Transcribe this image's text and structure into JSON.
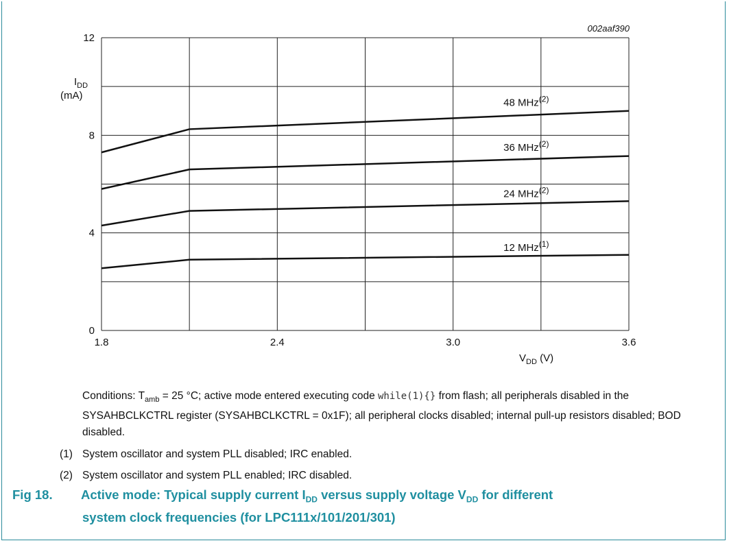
{
  "chart_data": {
    "type": "line",
    "reference_id": "002aaf390",
    "ylabel_main": "I",
    "ylabel_sub": "DD",
    "ylabel_unit": "(mA)",
    "xlabel_main": "V",
    "xlabel_sub": "DD",
    "xlabel_unit": " (V)",
    "xlim": [
      1.8,
      3.6
    ],
    "ylim": [
      0,
      12
    ],
    "x_ticks": [
      1.8,
      2.4,
      3.0,
      3.6
    ],
    "x_tick_labels": [
      "1.8",
      "2.4",
      "3.0",
      "3.6"
    ],
    "x_grid": [
      1.8,
      2.1,
      2.4,
      2.7,
      3.0,
      3.3,
      3.6
    ],
    "y_ticks": [
      0,
      4,
      8,
      12
    ],
    "y_tick_labels": [
      "0",
      "4",
      "8",
      "12"
    ],
    "y_grid": [
      0,
      2,
      4,
      6,
      8,
      10,
      12
    ],
    "grid": true,
    "x": [
      1.8,
      2.1,
      3.6
    ],
    "series": [
      {
        "name": "48 MHz",
        "note": "(2)",
        "values": [
          7.3,
          8.25,
          9.0
        ],
        "label_x": 3.2,
        "label_y": 9.35
      },
      {
        "name": "36 MHz",
        "note": "(2)",
        "values": [
          5.8,
          6.6,
          7.15
        ],
        "label_x": 3.2,
        "label_y": 7.5
      },
      {
        "name": "24 MHz",
        "note": "(2)",
        "values": [
          4.3,
          4.9,
          5.3
        ],
        "label_x": 3.2,
        "label_y": 5.6
      },
      {
        "name": "12 MHz",
        "note": "(1)",
        "values": [
          2.55,
          2.9,
          3.1
        ],
        "label_x": 3.2,
        "label_y": 3.4
      }
    ]
  },
  "conditions": {
    "p1": "Conditions: T",
    "sub1": "amb",
    "p2": " = 25 °C; active mode entered executing code ",
    "code": "while(1){}",
    "p3": " from flash; all peripherals disabled in the SYSAHBCLKCTRL register (SYSAHBCLKCTRL = 0x1F); all peripheral clocks disabled; internal pull-up resistors disabled; BOD disabled."
  },
  "notes": [
    {
      "num": "(1)",
      "text": "System oscillator and system PLL disabled; IRC enabled."
    },
    {
      "num": "(2)",
      "text": "System oscillator and system PLL enabled; IRC disabled."
    }
  ],
  "caption": {
    "fig": "Fig 18.",
    "p1": "Active mode: Typical supply current I",
    "sub1": "DD",
    "p2": " versus supply voltage V",
    "sub2": "DD",
    "p3": " for different",
    "line2": "system clock frequencies (for LPC111x/101/201/301)"
  }
}
